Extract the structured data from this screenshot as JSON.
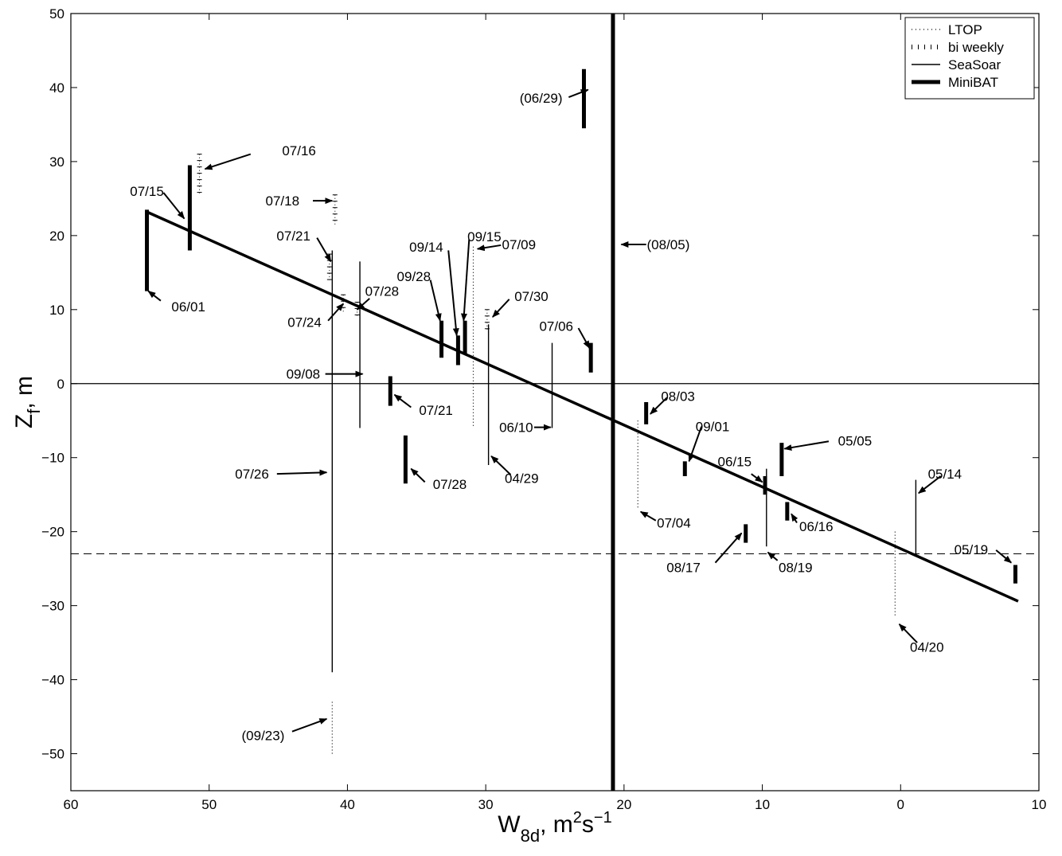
{
  "chart_data": {
    "type": "scatter",
    "title": "",
    "xlabel": {
      "main": "W",
      "sub": "8d",
      "after_sub": ", m",
      "sup1": "2",
      "mid": "s",
      "sup2": "−1"
    },
    "ylabel": {
      "main": "Z",
      "sub": "f",
      "after_sub": ", m"
    },
    "xlim": [
      60,
      -10
    ],
    "ylim": [
      -55,
      50
    ],
    "x_reversed": true,
    "xticks": [
      60,
      50,
      40,
      30,
      20,
      10,
      0,
      -10
    ],
    "yticks": [
      -50,
      -40,
      -30,
      -20,
      -10,
      0,
      10,
      20,
      30,
      40,
      50
    ],
    "xtick_labels": [
      "60",
      "50",
      "40",
      "30",
      "20",
      "10",
      "0",
      "10"
    ],
    "ytick_labels": [
      "−50",
      "−40",
      "−30",
      "−20",
      "−10",
      "0",
      "10",
      "20",
      "30",
      "40",
      "50"
    ],
    "legend": {
      "position": "top-right",
      "entries": [
        {
          "label": "LTOP",
          "style": "dotted"
        },
        {
          "label": "bi  weekly",
          "style": "ticked"
        },
        {
          "label": "SeaSoar",
          "style": "thin"
        },
        {
          "label": "MiniBAT",
          "style": "thick"
        }
      ]
    },
    "fit_line": {
      "x": [
        54.5,
        -8.5
      ],
      "y": [
        23.2,
        -29.4
      ]
    },
    "reference_lines": [
      {
        "orientation": "horizontal",
        "y": 0,
        "style": "solid"
      },
      {
        "orientation": "horizontal",
        "y": -23,
        "style": "dashed"
      }
    ],
    "series": [
      {
        "name": "LTOP",
        "style": "dotted",
        "ranges": [
          {
            "x": 30.9,
            "y_min": -6,
            "y_max": 18.5
          },
          {
            "x": 19.0,
            "y_min": -17,
            "y_max": -5
          },
          {
            "x": 0.4,
            "y_min": -31.5,
            "y_max": -20
          },
          {
            "x": 41.1,
            "y_min": -50,
            "y_max": -43
          }
        ]
      },
      {
        "name": "bi  weekly",
        "style": "ticked",
        "ranges": [
          {
            "x": 50.7,
            "y_min": 25.5,
            "y_max": 31
          },
          {
            "x": 40.9,
            "y_min": 21.5,
            "y_max": 25.5
          },
          {
            "x": 41.3,
            "y_min": 14,
            "y_max": 17.5
          },
          {
            "x": 40.3,
            "y_min": 9.5,
            "y_max": 12
          },
          {
            "x": 39.3,
            "y_min": 9,
            "y_max": 11
          },
          {
            "x": 29.9,
            "y_min": 7,
            "y_max": 10
          }
        ]
      },
      {
        "name": "SeaSoar",
        "style": "thin",
        "ranges": [
          {
            "x": 41.1,
            "y_min": -39,
            "y_max": 18
          },
          {
            "x": 39.1,
            "y_min": -6,
            "y_max": 16.5
          },
          {
            "x": 29.8,
            "y_min": -11,
            "y_max": 8
          },
          {
            "x": 25.2,
            "y_min": -6,
            "y_max": 5.5
          },
          {
            "x": 9.7,
            "y_min": -22,
            "y_max": -11.5
          },
          {
            "x": -1.1,
            "y_min": -23,
            "y_max": -13
          }
        ]
      },
      {
        "name": "MiniBAT",
        "style": "thick",
        "ranges": [
          {
            "x": 54.5,
            "y_min": 12.5,
            "y_max": 23.5
          },
          {
            "x": 51.4,
            "y_min": 18,
            "y_max": 29.5
          },
          {
            "x": 36.9,
            "y_min": -3,
            "y_max": 1
          },
          {
            "x": 35.8,
            "y_min": -13.5,
            "y_max": -7
          },
          {
            "x": 33.2,
            "y_min": 3.5,
            "y_max": 8.5
          },
          {
            "x": 32.0,
            "y_min": 2.5,
            "y_max": 6.5
          },
          {
            "x": 31.5,
            "y_min": 4,
            "y_max": 8.5
          },
          {
            "x": 22.4,
            "y_min": 1.5,
            "y_max": 5.5
          },
          {
            "x": 20.8,
            "y_min": -55,
            "y_max": 50
          },
          {
            "x": 22.9,
            "y_min": 34.5,
            "y_max": 42.5
          },
          {
            "x": 18.4,
            "y_min": -5.5,
            "y_max": -2.5
          },
          {
            "x": 15.6,
            "y_min": -12.5,
            "y_max": -10.5
          },
          {
            "x": 11.2,
            "y_min": -21.5,
            "y_max": -19
          },
          {
            "x": 9.8,
            "y_min": -15,
            "y_max": -12.5
          },
          {
            "x": 8.6,
            "y_min": -12.5,
            "y_max": -8
          },
          {
            "x": 8.2,
            "y_min": -18.5,
            "y_max": -16
          },
          {
            "x": -8.3,
            "y_min": -27,
            "y_max": -24.5
          }
        ]
      }
    ],
    "annotations": [
      {
        "text": "07/16",
        "label_x": 43.5,
        "label_y": 31.5,
        "arrow_from": [
          47,
          31
        ],
        "arrow_to": [
          50.3,
          29
        ]
      },
      {
        "text": "07/15",
        "label_x": 54.5,
        "label_y": 26,
        "arrow_from": [
          53.3,
          25.8
        ],
        "arrow_to": [
          51.8,
          22.3
        ]
      },
      {
        "text": "07/18",
        "label_x": 44.7,
        "label_y": 24.7,
        "arrow_from": [
          42.5,
          24.7
        ],
        "arrow_to": [
          41.1,
          24.7
        ]
      },
      {
        "text": "06/01",
        "label_x": 51.5,
        "label_y": 10.4,
        "arrow_from": [
          53.5,
          11.2
        ],
        "arrow_to": [
          54.4,
          12.5
        ]
      },
      {
        "text": "07/21",
        "label_x": 43.9,
        "label_y": 20,
        "arrow_from": [
          42.2,
          19.7
        ],
        "arrow_to": [
          41.2,
          16.5
        ]
      },
      {
        "text": "07/24",
        "label_x": 43.1,
        "label_y": 8.3,
        "arrow_from": [
          41.4,
          8.5
        ],
        "arrow_to": [
          40.3,
          10.8
        ]
      },
      {
        "text": "07/28",
        "label_x": 37.5,
        "label_y": 12.5,
        "arrow_from": [
          38.4,
          11.5
        ],
        "arrow_to": [
          39.3,
          10
        ]
      },
      {
        "text": "09/08",
        "label_x": 43.2,
        "label_y": 1.3,
        "arrow_from": [
          41.6,
          1.3
        ],
        "arrow_to": [
          38.9,
          1.3
        ]
      },
      {
        "text": "07/26",
        "label_x": 46.9,
        "label_y": -12.2,
        "arrow_from": [
          45.1,
          -12.2
        ],
        "arrow_to": [
          41.5,
          -12
        ]
      },
      {
        "text": "07/21",
        "label_x": 33.6,
        "label_y": -3.6,
        "arrow_from": [
          35.4,
          -3.2
        ],
        "arrow_to": [
          36.6,
          -1.5
        ]
      },
      {
        "text": "07/28",
        "label_x": 32.6,
        "label_y": -13.6,
        "arrow_from": [
          34.4,
          -13.3
        ],
        "arrow_to": [
          35.4,
          -11.5
        ]
      },
      {
        "text": "09/14",
        "label_x": 34.3,
        "label_y": 18.5,
        "arrow_from": [
          32.7,
          18
        ],
        "arrow_to": [
          32.1,
          6.5
        ]
      },
      {
        "text": "09/28",
        "label_x": 35.2,
        "label_y": 14.5,
        "arrow_from": [
          34,
          14
        ],
        "arrow_to": [
          33.3,
          8.5
        ]
      },
      {
        "text": "09/15",
        "label_x": 30.1,
        "label_y": 19.9,
        "arrow_from": [
          31.2,
          19.5
        ],
        "arrow_to": [
          31.6,
          8.5
        ]
      },
      {
        "text": "07/09",
        "label_x": 27.6,
        "label_y": 18.8,
        "arrow_from": [
          28.9,
          18.7
        ],
        "arrow_to": [
          30.6,
          18.2
        ]
      },
      {
        "text": "07/30",
        "label_x": 26.7,
        "label_y": 11.8,
        "arrow_from": [
          28.3,
          11.4
        ],
        "arrow_to": [
          29.5,
          9
        ]
      },
      {
        "text": "07/06",
        "label_x": 24.9,
        "label_y": 7.8,
        "arrow_from": [
          23.3,
          7.5
        ],
        "arrow_to": [
          22.5,
          4.8
        ]
      },
      {
        "text": "(06/29)",
        "label_x": 26,
        "label_y": 38.6,
        "arrow_from": [
          24,
          38.7
        ],
        "arrow_to": [
          22.6,
          39.7
        ]
      },
      {
        "text": "(08/05)",
        "label_x": 16.8,
        "label_y": 18.8,
        "arrow_from": [
          18.4,
          18.8
        ],
        "arrow_to": [
          20.2,
          18.8
        ]
      },
      {
        "text": "06/10",
        "label_x": 27.8,
        "label_y": -5.9,
        "arrow_from": [
          26.5,
          -5.9
        ],
        "arrow_to": [
          25.3,
          -5.9
        ]
      },
      {
        "text": "04/29",
        "label_x": 27.4,
        "label_y": -12.8,
        "arrow_from": [
          28.2,
          -12.3
        ],
        "arrow_to": [
          29.6,
          -9.8
        ]
      },
      {
        "text": "08/03",
        "label_x": 16.1,
        "label_y": -1.7,
        "arrow_from": [
          16.9,
          -1.9
        ],
        "arrow_to": [
          18.1,
          -4.1
        ]
      },
      {
        "text": "09/01",
        "label_x": 13.6,
        "label_y": -5.8,
        "arrow_from": [
          14.4,
          -5.8
        ],
        "arrow_to": [
          15.3,
          -10.5
        ]
      },
      {
        "text": "07/04",
        "label_x": 16.4,
        "label_y": -18.8,
        "arrow_from": [
          17.7,
          -18.5
        ],
        "arrow_to": [
          18.8,
          -17.3
        ]
      },
      {
        "text": "06/15",
        "label_x": 12,
        "label_y": -10.5,
        "arrow_from": [
          10.8,
          -12.2
        ],
        "arrow_to": [
          10,
          -13.3
        ]
      },
      {
        "text": "05/05",
        "label_x": 3.3,
        "label_y": -7.7,
        "arrow_from": [
          5.2,
          -7.8
        ],
        "arrow_to": [
          8.4,
          -8.8
        ]
      },
      {
        "text": "06/16",
        "label_x": 6.1,
        "label_y": -19.3,
        "arrow_from": [
          7.5,
          -18.8
        ],
        "arrow_to": [
          7.9,
          -17.6
        ]
      },
      {
        "text": "08/17",
        "label_x": 15.7,
        "label_y": -24.8,
        "arrow_from": [
          13.4,
          -24.2
        ],
        "arrow_to": [
          11.5,
          -20.2
        ]
      },
      {
        "text": "08/19",
        "label_x": 7.6,
        "label_y": -24.8,
        "arrow_from": [
          8.9,
          -23.9
        ],
        "arrow_to": [
          9.6,
          -22.8
        ]
      },
      {
        "text": "05/14",
        "label_x": -3.2,
        "label_y": -12.2,
        "arrow_from": [
          -2.9,
          -12.5
        ],
        "arrow_to": [
          -1.3,
          -14.8
        ]
      },
      {
        "text": "05/19",
        "label_x": -5.1,
        "label_y": -22.4,
        "arrow_from": [
          -6.9,
          -22.5
        ],
        "arrow_to": [
          -8,
          -24.2
        ]
      },
      {
        "text": "04/20",
        "label_x": -1.9,
        "label_y": -35.6,
        "arrow_from": [
          -1.2,
          -35
        ],
        "arrow_to": [
          0.1,
          -32.5
        ]
      },
      {
        "text": "(09/23)",
        "label_x": 46.1,
        "label_y": -47.5,
        "arrow_from": [
          44,
          -47
        ],
        "arrow_to": [
          41.5,
          -45.3
        ]
      }
    ]
  }
}
